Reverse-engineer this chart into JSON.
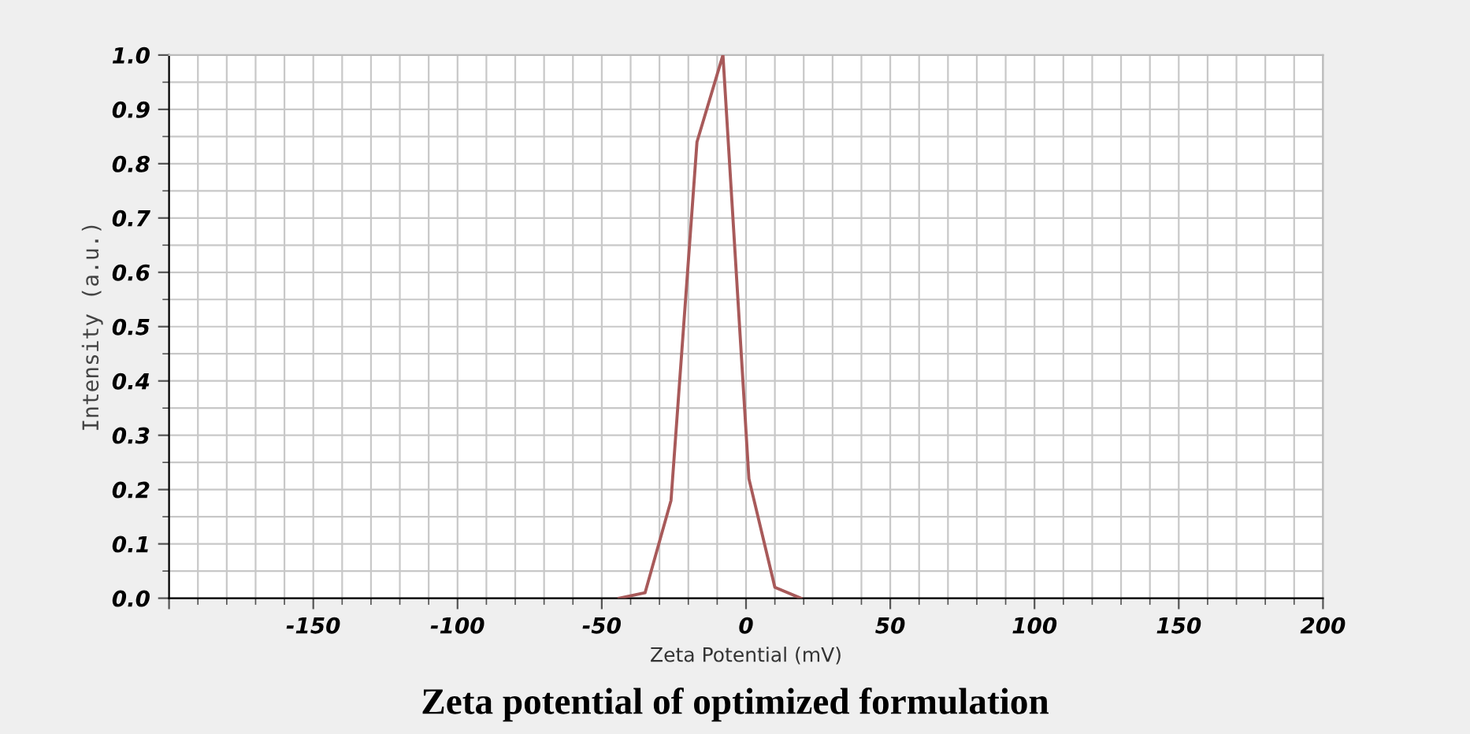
{
  "chart_data": {
    "type": "line",
    "title": "Zeta potential of optimized formulation",
    "xlabel": "Zeta Potential (mV)",
    "ylabel": "Intensity (a.u.)",
    "x": [
      -44,
      -35,
      -26,
      -17,
      -8,
      1,
      10,
      19
    ],
    "series": [
      {
        "color": "#a85a5a",
        "values": [
          0.0,
          0.01,
          0.18,
          0.84,
          1.0,
          0.22,
          0.02,
          0.0
        ]
      }
    ],
    "xlim": [
      -200,
      200
    ],
    "xticks": [
      {
        "value": -200,
        "label": null
      },
      -150,
      -100,
      -50,
      0,
      50,
      100,
      150,
      200
    ],
    "ylim": [
      0,
      1
    ],
    "yticks": [
      {
        "value": 0,
        "label": "0.0"
      },
      0.1,
      0.2,
      0.3,
      0.4,
      0.5,
      0.6,
      0.7,
      0.8,
      0.9,
      {
        "value": 1,
        "label": "1.0"
      }
    ],
    "grid": true,
    "marker": "none",
    "line_style": "solid",
    "legend": false
  }
}
